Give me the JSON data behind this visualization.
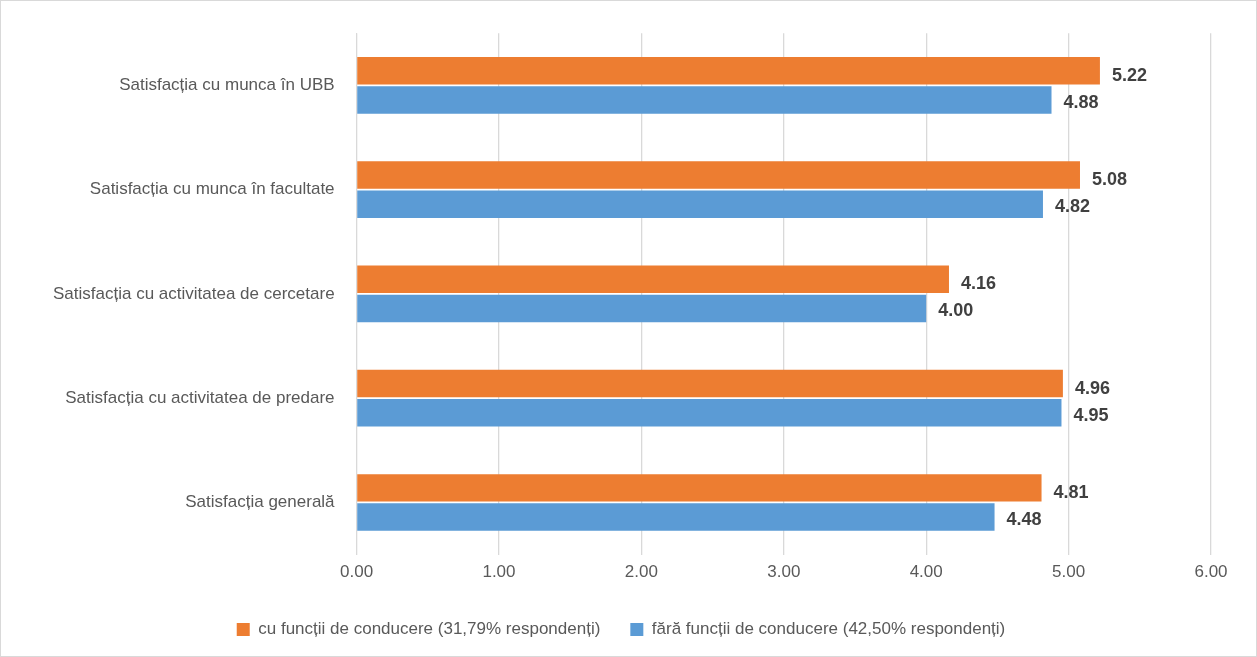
{
  "chart_data": {
    "type": "bar",
    "orientation": "horizontal",
    "categories": [
      "Satisfacția cu munca în UBB",
      "Satisfacția cu munca în facultate",
      "Satisfacția cu activitatea de cercetare",
      "Satisfacția cu activitatea de predare",
      "Satisfacția generală"
    ],
    "series": [
      {
        "name": "cu funcții de conducere (31,79% respondenți)",
        "color": "#ed7d31",
        "values": [
          5.22,
          5.08,
          4.16,
          4.96,
          4.81
        ],
        "value_labels": [
          "5.22",
          "5.08",
          "4.16",
          "4.96",
          "4.81"
        ]
      },
      {
        "name": "fără funcții de conducere (42,50% respondenți)",
        "color": "#5b9bd5",
        "values": [
          4.88,
          4.82,
          4.0,
          4.95,
          4.48
        ],
        "value_labels": [
          "4.88",
          "4.82",
          "4.00",
          "4.95",
          "4.48"
        ]
      }
    ],
    "xlim": [
      0,
      6
    ],
    "xticks": [
      {
        "value": 0,
        "label": "0.00"
      },
      {
        "value": 1,
        "label": "1.00"
      },
      {
        "value": 2,
        "label": "2.00"
      },
      {
        "value": 3,
        "label": "3.00"
      },
      {
        "value": 4,
        "label": "4.00"
      },
      {
        "value": 5,
        "label": "5.00"
      },
      {
        "value": 6,
        "label": "6.00"
      }
    ],
    "grid": "x",
    "legend": "bottom"
  }
}
